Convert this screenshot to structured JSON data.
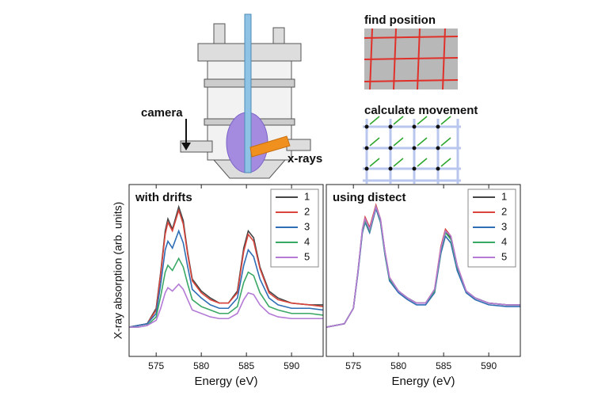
{
  "diagram": {
    "camera": "camera",
    "xrays": "x-rays",
    "find_position": "find position",
    "calculate_movement": "calculate movement"
  },
  "chart_data": [
    {
      "type": "line",
      "title": "with drifts",
      "xlabel": "Energy (eV)",
      "ylabel": "X-ray absorption (arb. units)",
      "xlim": [
        572,
        593.5
      ],
      "ylim": [
        0,
        1
      ],
      "xticks": [
        575,
        580,
        585,
        590
      ],
      "x": [
        572,
        573,
        574,
        575,
        575.5,
        576,
        576.3,
        576.8,
        577.5,
        578,
        578.5,
        579,
        580,
        581,
        582,
        583,
        584,
        584.7,
        585.2,
        585.8,
        586.5,
        587.5,
        588.5,
        590,
        592,
        593.5
      ],
      "series": [
        {
          "name": "1",
          "color": "#444444",
          "values": [
            0.17,
            0.18,
            0.19,
            0.28,
            0.49,
            0.73,
            0.8,
            0.74,
            0.87,
            0.79,
            0.6,
            0.45,
            0.38,
            0.34,
            0.31,
            0.31,
            0.38,
            0.63,
            0.73,
            0.69,
            0.52,
            0.38,
            0.34,
            0.31,
            0.3,
            0.3
          ]
        },
        {
          "name": "2",
          "color": "#d9453d",
          "values": [
            0.17,
            0.18,
            0.19,
            0.27,
            0.48,
            0.71,
            0.78,
            0.73,
            0.85,
            0.77,
            0.59,
            0.44,
            0.37,
            0.33,
            0.31,
            0.31,
            0.37,
            0.61,
            0.71,
            0.67,
            0.51,
            0.37,
            0.33,
            0.31,
            0.3,
            0.29
          ]
        },
        {
          "name": "3",
          "color": "#2f6db5",
          "values": [
            0.17,
            0.18,
            0.19,
            0.25,
            0.42,
            0.62,
            0.67,
            0.63,
            0.73,
            0.66,
            0.52,
            0.39,
            0.34,
            0.3,
            0.28,
            0.28,
            0.34,
            0.53,
            0.62,
            0.58,
            0.45,
            0.34,
            0.3,
            0.28,
            0.28,
            0.27
          ]
        },
        {
          "name": "4",
          "color": "#3aa865",
          "values": [
            0.17,
            0.17,
            0.18,
            0.23,
            0.35,
            0.49,
            0.53,
            0.5,
            0.57,
            0.52,
            0.42,
            0.33,
            0.29,
            0.27,
            0.25,
            0.25,
            0.29,
            0.43,
            0.49,
            0.47,
            0.37,
            0.29,
            0.27,
            0.25,
            0.25,
            0.24
          ]
        },
        {
          "name": "5",
          "color": "#b37ad6",
          "values": [
            0.17,
            0.17,
            0.18,
            0.21,
            0.28,
            0.37,
            0.4,
            0.38,
            0.42,
            0.39,
            0.33,
            0.27,
            0.25,
            0.23,
            0.22,
            0.22,
            0.25,
            0.33,
            0.37,
            0.36,
            0.3,
            0.25,
            0.23,
            0.22,
            0.22,
            0.22
          ]
        }
      ]
    },
    {
      "type": "line",
      "title": "using distect",
      "xlabel": "Energy (eV)",
      "xlim": [
        572,
        593.5
      ],
      "ylim": [
        0,
        1
      ],
      "xticks": [
        575,
        580,
        585,
        590
      ],
      "x": [
        572,
        573,
        574,
        575,
        575.5,
        576,
        576.3,
        576.8,
        577.5,
        578,
        578.5,
        579,
        580,
        581,
        582,
        583,
        584,
        584.7,
        585.2,
        585.8,
        586.5,
        587.5,
        588.5,
        590,
        592,
        593.5
      ],
      "series": [
        {
          "name": "1",
          "color": "#444444",
          "values": [
            0.17,
            0.18,
            0.19,
            0.28,
            0.49,
            0.73,
            0.8,
            0.74,
            0.87,
            0.79,
            0.6,
            0.45,
            0.38,
            0.34,
            0.31,
            0.31,
            0.38,
            0.63,
            0.73,
            0.69,
            0.52,
            0.38,
            0.34,
            0.31,
            0.3,
            0.3
          ]
        },
        {
          "name": "2",
          "color": "#d9453d",
          "values": [
            0.17,
            0.18,
            0.19,
            0.28,
            0.49,
            0.74,
            0.81,
            0.75,
            0.88,
            0.8,
            0.61,
            0.46,
            0.38,
            0.34,
            0.31,
            0.31,
            0.39,
            0.64,
            0.74,
            0.7,
            0.53,
            0.38,
            0.34,
            0.31,
            0.3,
            0.3
          ]
        },
        {
          "name": "3",
          "color": "#2f6db5",
          "values": [
            0.17,
            0.18,
            0.19,
            0.28,
            0.48,
            0.72,
            0.78,
            0.72,
            0.86,
            0.78,
            0.59,
            0.44,
            0.37,
            0.33,
            0.3,
            0.3,
            0.37,
            0.6,
            0.7,
            0.66,
            0.5,
            0.37,
            0.33,
            0.3,
            0.29,
            0.29
          ]
        },
        {
          "name": "4",
          "color": "#3aa865",
          "values": [
            0.17,
            0.18,
            0.19,
            0.28,
            0.49,
            0.73,
            0.79,
            0.73,
            0.87,
            0.79,
            0.6,
            0.45,
            0.38,
            0.34,
            0.31,
            0.31,
            0.38,
            0.62,
            0.72,
            0.68,
            0.52,
            0.38,
            0.34,
            0.31,
            0.3,
            0.3
          ]
        },
        {
          "name": "5",
          "color": "#b37ad6",
          "values": [
            0.17,
            0.18,
            0.19,
            0.28,
            0.49,
            0.74,
            0.8,
            0.74,
            0.87,
            0.8,
            0.61,
            0.46,
            0.38,
            0.34,
            0.31,
            0.31,
            0.39,
            0.63,
            0.73,
            0.7,
            0.53,
            0.38,
            0.34,
            0.31,
            0.3,
            0.3
          ]
        }
      ]
    }
  ]
}
